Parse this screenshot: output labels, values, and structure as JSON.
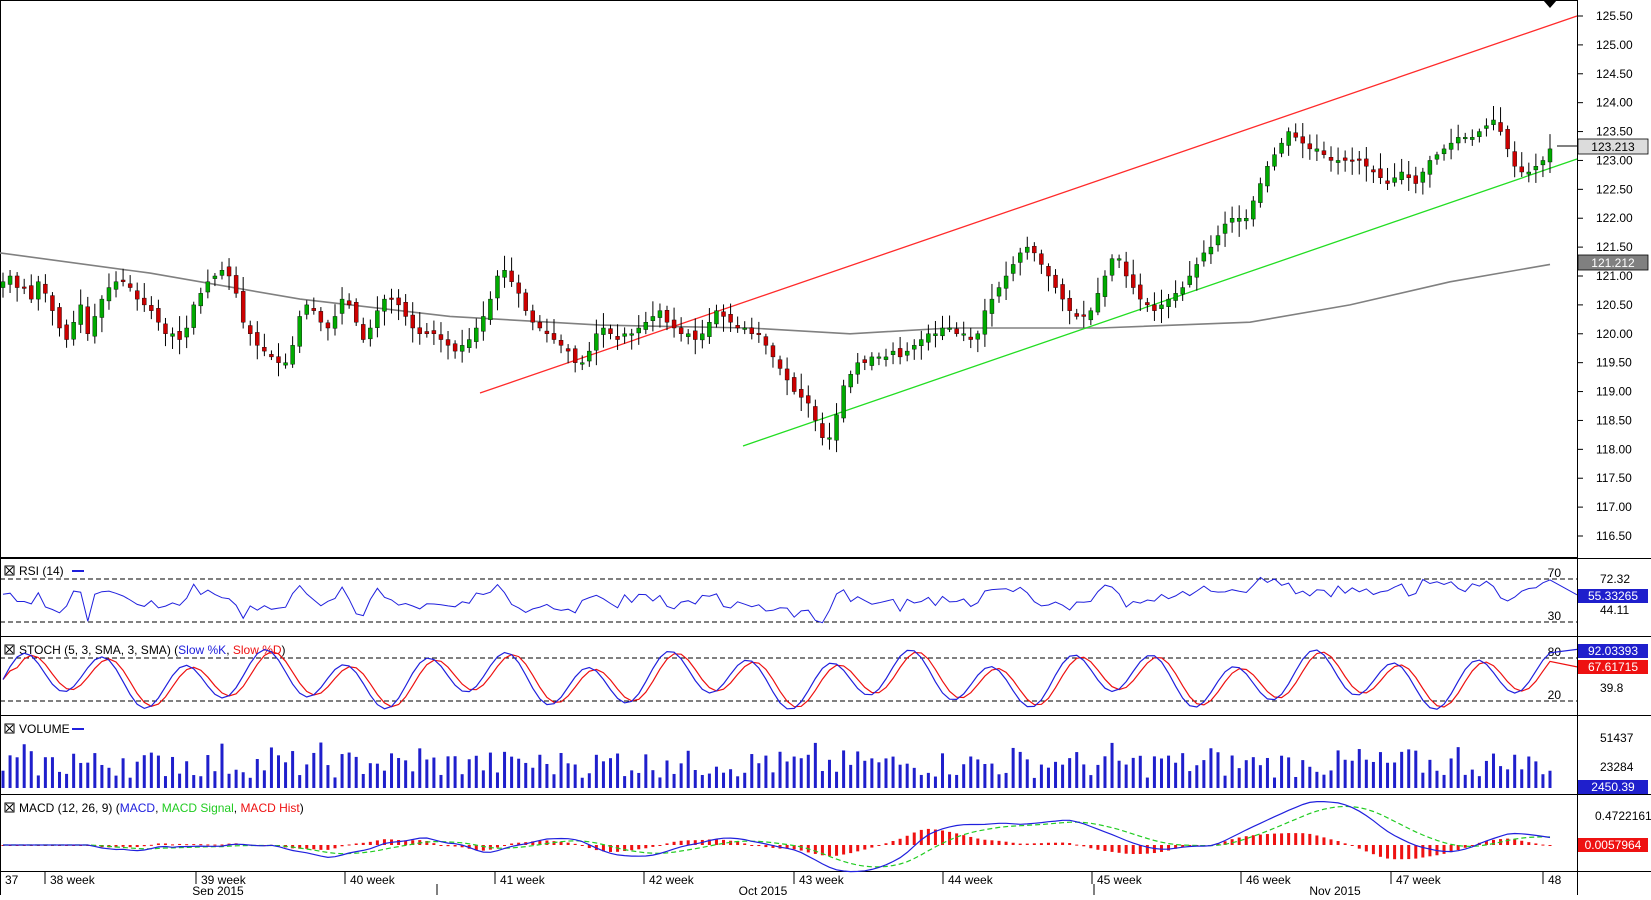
{
  "colors": {
    "bull": "#00aa00",
    "bear": "#cc0000",
    "wick": "#000000",
    "sma": "#808080",
    "upper_channel": "#ff2a2a",
    "lower_channel": "#22dd22",
    "rsi": "#2020dd",
    "stoch_k": "#2020dd",
    "stoch_d": "#ee1111",
    "volume": "#1f1fcc",
    "macd": "#2020dd",
    "macd_signal": "#22cc22",
    "macd_hist": "#ee1111"
  },
  "main": {
    "price_ticks": [
      "125.50",
      "125.00",
      "124.50",
      "124.00",
      "123.50",
      "123.00",
      "122.50",
      "122.00",
      "121.50",
      "121.00",
      "120.50",
      "120.00",
      "119.50",
      "119.00",
      "118.50",
      "118.00",
      "117.50",
      "117.00",
      "116.50"
    ],
    "last_price_label": "123.213",
    "sma_value_label": "121.212"
  },
  "rsi": {
    "title": "RSI (14)",
    "level_high": "70",
    "level_low": "30",
    "axis_high": "72.32",
    "axis_low": "44.11",
    "value_label": "55.33265"
  },
  "stoch": {
    "title_prefix": "STOCH (5, 3, SMA, 3, SMA)",
    "title_k": "Slow %K",
    "title_d": "Slow %D",
    "level_high": "80",
    "level_low": "20",
    "axis_mid": "39.8",
    "k_label": "92.03393",
    "d_label": "67.61715"
  },
  "volume": {
    "title": "VOLUME",
    "axis_high": "51437",
    "axis_mid": "23284",
    "value_label": "2450.39"
  },
  "macd": {
    "title_prefix": "MACD (12, 26, 9)",
    "title_macd": "MACD",
    "title_signal": "MACD Signal",
    "title_hist": "MACD Hist",
    "axis_high": "0.4722161",
    "value_label": "0.0057964"
  },
  "time_axis": {
    "weeks": [
      "37",
      "38 week",
      "39 week",
      "40 week",
      "41 week",
      "42 week",
      "43 week",
      "44 week",
      "45 week",
      "46 week",
      "47 week",
      "48"
    ],
    "months": [
      "Sep 2015",
      "Oct 2015",
      "Nov 2015"
    ]
  },
  "chart_data": {
    "type": "candlestick",
    "x_range": [
      "week 37 2015",
      "week 48 2015"
    ],
    "ylim": [
      116.3,
      125.7
    ],
    "close_series": [
      120.9,
      121.0,
      120.8,
      120.8,
      120.6,
      120.9,
      120.7,
      120.4,
      120.1,
      119.9,
      120.2,
      120.5,
      120.0,
      120.3,
      120.6,
      120.8,
      120.9,
      120.9,
      120.8,
      120.6,
      120.5,
      120.4,
      120.2,
      120.0,
      120.0,
      119.9,
      120.1,
      120.5,
      120.7,
      120.9,
      121.0,
      121.1,
      121.0,
      120.7,
      120.2,
      120.0,
      119.8,
      119.7,
      119.6,
      119.5,
      119.5,
      119.8,
      120.3,
      120.5,
      120.4,
      120.2,
      120.1,
      120.3,
      120.6,
      120.5,
      120.2,
      119.9,
      120.1,
      120.4,
      120.6,
      120.6,
      120.5,
      120.3,
      120.1,
      120.0,
      120.0,
      120.0,
      119.9,
      119.8,
      119.7,
      119.8,
      119.9,
      120.1,
      120.3,
      120.6,
      121.0,
      121.1,
      120.9,
      120.7,
      120.4,
      120.2,
      120.1,
      120.0,
      119.9,
      119.8,
      119.7,
      119.5,
      119.5,
      119.7,
      120.0,
      120.1,
      120.0,
      119.9,
      120.0,
      120.0,
      120.1,
      120.2,
      120.3,
      120.4,
      120.2,
      120.1,
      120.0,
      120.0,
      119.9,
      120.0,
      120.2,
      120.4,
      120.3,
      120.2,
      120.1,
      120.1,
      120.0,
      120.0,
      119.8,
      119.6,
      119.4,
      119.2,
      119.0,
      118.9,
      118.8,
      118.5,
      118.2,
      118.2,
      118.6,
      119.1,
      119.3,
      119.5,
      119.5,
      119.6,
      119.6,
      119.6,
      119.7,
      119.6,
      119.7,
      119.8,
      119.9,
      120.0,
      120.0,
      120.1,
      120.1,
      120.0,
      120.0,
      119.9,
      120.0,
      120.4,
      120.6,
      120.8,
      121.0,
      121.2,
      121.4,
      121.5,
      121.4,
      121.2,
      121.0,
      120.8,
      120.6,
      120.4,
      120.3,
      120.3,
      120.4,
      120.7,
      121.0,
      121.3,
      121.3,
      121.0,
      120.8,
      120.6,
      120.5,
      120.4,
      120.5,
      120.6,
      120.7,
      120.8,
      121.0,
      121.2,
      121.4,
      121.5,
      121.7,
      121.9,
      122.0,
      122.0,
      122.0,
      122.3,
      122.6,
      122.9,
      123.1,
      123.3,
      123.5,
      123.4,
      123.3,
      123.2,
      123.2,
      123.1,
      123.0,
      123.0,
      123.0,
      123.0,
      123.0,
      122.9,
      122.8,
      122.7,
      122.6,
      122.7,
      122.8,
      122.7,
      122.6,
      122.8,
      123.0,
      123.1,
      123.2,
      123.3,
      123.4,
      123.4,
      123.4,
      123.5,
      123.6,
      123.7,
      123.5,
      123.2,
      122.9,
      122.8,
      122.8,
      122.9,
      123.0,
      123.2
    ]
  }
}
